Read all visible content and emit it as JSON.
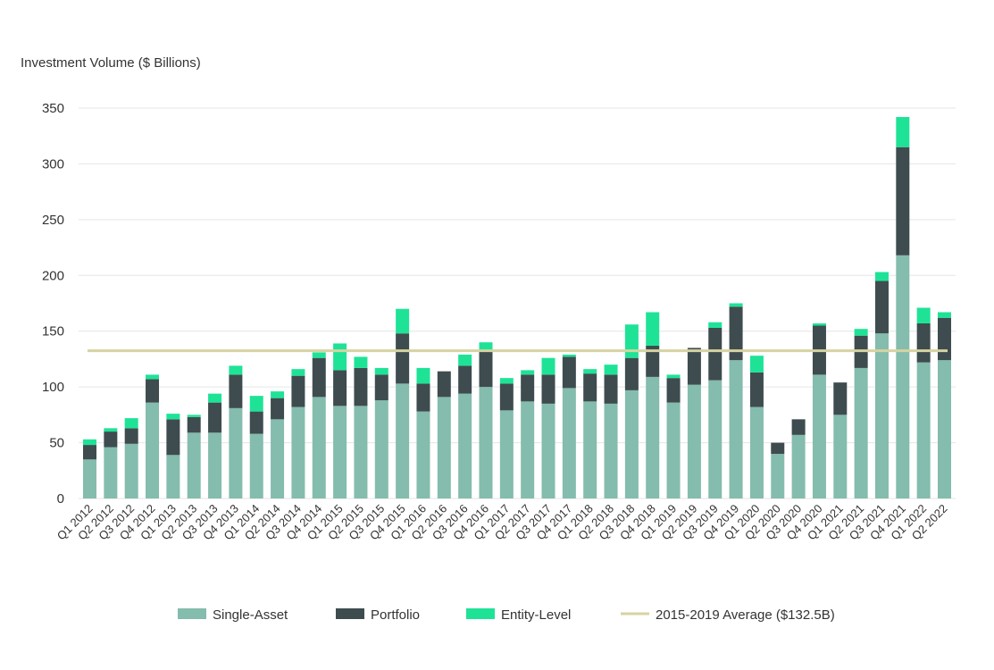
{
  "chart_data": {
    "type": "bar",
    "stacked": true,
    "title": "",
    "xlabel": "",
    "ylabel": "Investment Volume ($ Billions)",
    "ylim": [
      0,
      350
    ],
    "yticks": [
      0,
      50,
      100,
      150,
      200,
      250,
      300,
      350
    ],
    "grid": true,
    "legend_position": "bottom",
    "categories": [
      "Q1 2012",
      "Q2 2012",
      "Q3 2012",
      "Q4 2012",
      "Q1 2013",
      "Q2 2013",
      "Q3 2013",
      "Q4 2013",
      "Q1 2014",
      "Q2 2014",
      "Q3 2014",
      "Q4 2014",
      "Q1 2015",
      "Q2 2015",
      "Q3 2015",
      "Q4 2015",
      "Q1 2016",
      "Q2 2016",
      "Q3 2016",
      "Q4 2016",
      "Q1 2017",
      "Q2 2017",
      "Q3 2017",
      "Q4 2017",
      "Q1 2018",
      "Q2 2018",
      "Q3 2018",
      "Q4 2018",
      "Q1 2019",
      "Q2 2019",
      "Q3 2019",
      "Q4 2019",
      "Q1 2020",
      "Q2 2020",
      "Q3 2020",
      "Q4 2020",
      "Q1 2021",
      "Q2 2021",
      "Q3 2021",
      "Q4 2021",
      "Q1 2022",
      "Q2 2022"
    ],
    "series": [
      {
        "name": "Single-Asset",
        "color": "#84bcad",
        "values": [
          35,
          46,
          49,
          86,
          39,
          59,
          59,
          81,
          58,
          71,
          82,
          91,
          83,
          83,
          88,
          103,
          78,
          91,
          94,
          100,
          79,
          87,
          85,
          99,
          87,
          85,
          97,
          109,
          86,
          102,
          106,
          124,
          82,
          40,
          57,
          111,
          75,
          117,
          148,
          218,
          122,
          124
        ]
      },
      {
        "name": "Portfolio",
        "color": "#3e4c4f",
        "values": [
          13,
          14,
          14,
          21,
          32,
          14,
          27,
          30,
          20,
          19,
          28,
          35,
          32,
          34,
          23,
          45,
          25,
          23,
          25,
          33,
          24,
          24,
          26,
          28,
          25,
          26,
          29,
          28,
          22,
          33,
          47,
          48,
          31,
          10,
          14,
          44,
          29,
          29,
          47,
          97,
          35,
          38
        ]
      },
      {
        "name": "Entity-Level",
        "color": "#1ee397",
        "values": [
          5,
          3,
          9,
          4,
          5,
          2,
          8,
          8,
          14,
          6,
          6,
          5,
          24,
          10,
          6,
          22,
          14,
          0,
          10,
          7,
          5,
          4,
          15,
          2,
          4,
          9,
          30,
          30,
          3,
          0,
          5,
          3,
          15,
          0,
          0,
          2,
          0,
          6,
          8,
          27,
          14,
          5
        ]
      }
    ],
    "reference_line": {
      "name": "2015-2019 Average ($132.5B)",
      "value": 132.5,
      "color": "#d7d3a2"
    }
  }
}
